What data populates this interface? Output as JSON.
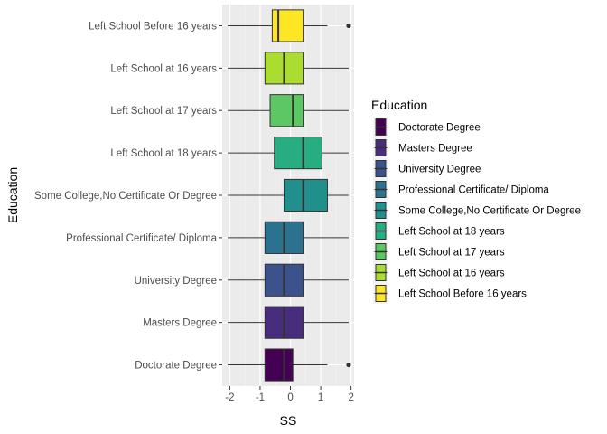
{
  "chart_data": {
    "type": "boxplot",
    "orientation": "horizontal",
    "xlabel": "SS",
    "ylabel": "Education",
    "xlim": [
      -2.25,
      2.1
    ],
    "xticks": [
      -2,
      -1,
      0,
      1,
      2
    ],
    "xtick_labels": [
      "-2",
      "-1",
      "0",
      "1",
      "2"
    ],
    "grid": true,
    "legend": {
      "title": "Education",
      "position": "right",
      "entries": [
        {
          "label": "Doctorate Degree",
          "color": "#440154"
        },
        {
          "label": "Masters Degree",
          "color": "#472D7B"
        },
        {
          "label": "University Degree",
          "color": "#3B528B"
        },
        {
          "label": "Professional Certificate/ Diploma",
          "color": "#2C728E"
        },
        {
          "label": "Some College,No Certificate Or Degree",
          "color": "#21908C"
        },
        {
          "label": "Left School at 18 years",
          "color": "#27AD81"
        },
        {
          "label": "Left School at 17 years",
          "color": "#5DC863"
        },
        {
          "label": "Left School at 16 years",
          "color": "#AADC32"
        },
        {
          "label": "Left School Before 16 years",
          "color": "#FDE725"
        }
      ]
    },
    "categories": [
      "Doctorate Degree",
      "Masters Degree",
      "University Degree",
      "Professional Certificate/ Diploma",
      "Some College,No Certificate Or Degree",
      "Left School at 18 years",
      "Left School at 17 years",
      "Left School at 16 years",
      "Left School Before 16 years"
    ],
    "boxes": [
      {
        "category": "Doctorate Degree",
        "whisker_low": -2.07,
        "q1": -0.84,
        "median": -0.21,
        "q3": 0.08,
        "whisker_high": 1.22,
        "outliers": [
          1.92
        ],
        "color": "#440154"
      },
      {
        "category": "Masters Degree",
        "whisker_low": -2.07,
        "q1": -0.84,
        "median": -0.21,
        "q3": 0.42,
        "whisker_high": 1.92,
        "outliers": [],
        "color": "#472D7B"
      },
      {
        "category": "University Degree",
        "whisker_low": -2.07,
        "q1": -0.84,
        "median": -0.21,
        "q3": 0.42,
        "whisker_high": 1.92,
        "outliers": [],
        "color": "#3B528B"
      },
      {
        "category": "Professional Certificate/ Diploma",
        "whisker_low": -2.07,
        "q1": -0.84,
        "median": -0.21,
        "q3": 0.42,
        "whisker_high": 1.92,
        "outliers": [],
        "color": "#2C728E"
      },
      {
        "category": "Some College,No Certificate Or Degree",
        "whisker_low": -2.07,
        "q1": -0.21,
        "median": 0.42,
        "q3": 1.22,
        "whisker_high": 1.92,
        "outliers": [],
        "color": "#21908C"
      },
      {
        "category": "Left School at 18 years",
        "whisker_low": -2.07,
        "q1": -0.53,
        "median": 0.42,
        "q3": 1.04,
        "whisker_high": 1.92,
        "outliers": [],
        "color": "#27AD81"
      },
      {
        "category": "Left School at 17 years",
        "whisker_low": -2.07,
        "q1": -0.67,
        "median": 0.08,
        "q3": 0.42,
        "whisker_high": 1.92,
        "outliers": [],
        "color": "#5DC863"
      },
      {
        "category": "Left School at 16 years",
        "whisker_low": -2.07,
        "q1": -0.84,
        "median": -0.21,
        "q3": 0.42,
        "whisker_high": 1.92,
        "outliers": [],
        "color": "#AADC32"
      },
      {
        "category": "Left School Before 16 years",
        "whisker_low": -2.07,
        "q1": -0.6,
        "median": -0.4,
        "q3": 0.42,
        "whisker_high": 1.22,
        "outliers": [
          1.92
        ],
        "color": "#FDE725"
      }
    ]
  }
}
